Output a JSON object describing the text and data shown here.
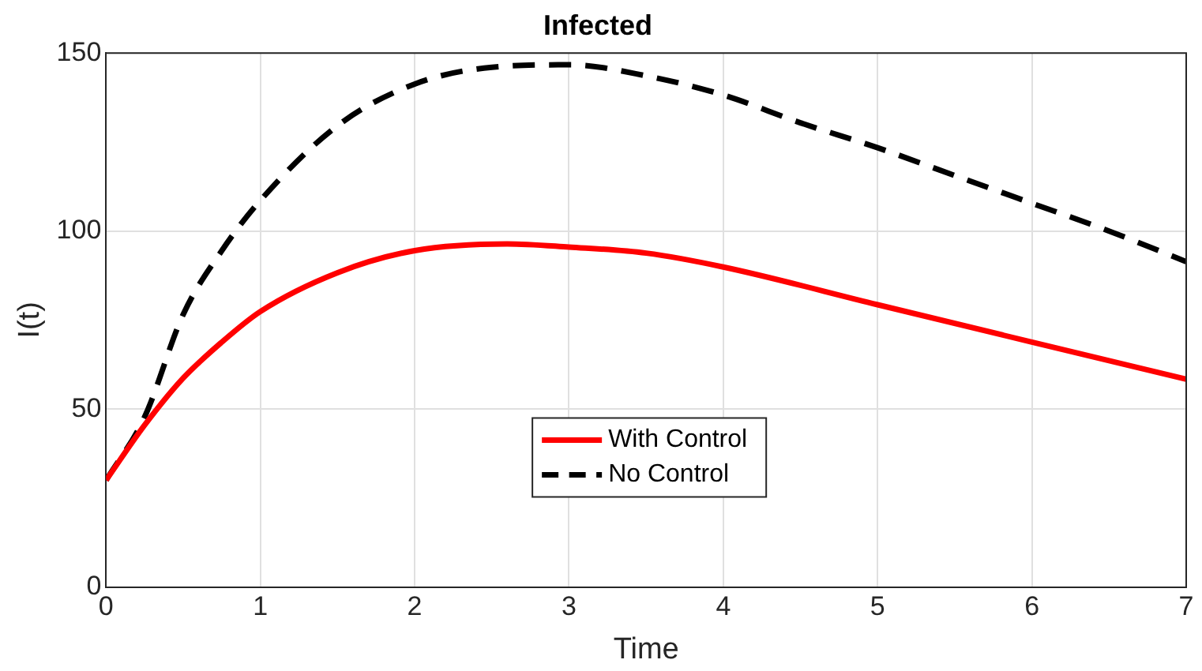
{
  "chart_data": {
    "type": "line",
    "title": "Infected",
    "xlabel": "Time",
    "ylabel": "I(t)",
    "xlim": [
      0,
      7
    ],
    "xticks": [
      0,
      1,
      2,
      3,
      4,
      5,
      6,
      7
    ],
    "ylim": [
      0,
      150
    ],
    "yticks": [
      0,
      50,
      100,
      150
    ],
    "grid": true,
    "legend": "bottom",
    "marker": "none",
    "series": [
      {
        "name": "With Control",
        "color": "#ff0000",
        "line_style": "solid",
        "x": [
          0,
          0.25,
          0.5,
          0.75,
          1,
          1.5,
          2,
          2.6,
          3,
          3.5,
          4,
          5,
          6,
          7
        ],
        "values": [
          30,
          45.5,
          58.7,
          68.8,
          77.4,
          88.3,
          94.5,
          96.4,
          95.5,
          93.8,
          89.9,
          79.3,
          68.8,
          58.4
        ]
      },
      {
        "name": "No Control",
        "color": "#000000",
        "line_style": "dashed",
        "x": [
          0,
          0.25,
          0.5,
          0.75,
          1,
          1.5,
          2,
          2.5,
          3,
          3.5,
          4,
          4.5,
          5,
          5.5,
          6,
          6.5,
          7
        ],
        "values": [
          30,
          47.8,
          76.6,
          94.5,
          108.6,
          129.6,
          141.3,
          146,
          146.7,
          143.6,
          138.2,
          130.4,
          123.4,
          115.6,
          107.8,
          100,
          91.4
        ]
      }
    ]
  }
}
